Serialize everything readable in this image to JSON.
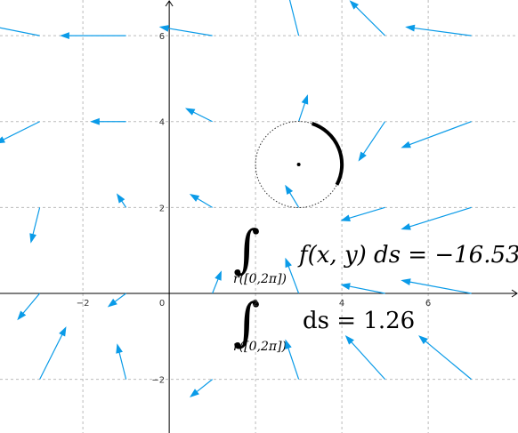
{
  "chart_data": {
    "type": "vector_field",
    "xlim": [
      -3.92,
      8.08
    ],
    "ylim": [
      -3.25,
      6.83
    ],
    "xticks": [
      {
        "value": -2,
        "label": "−2"
      },
      0,
      2,
      4,
      6
    ],
    "yticks": [
      {
        "value": -2,
        "label": "−2"
      },
      2,
      4,
      6
    ],
    "grid": true,
    "color": "#0a9be8",
    "vectors": [
      [
        -3,
        6,
        -1.5,
        0.3
      ],
      [
        -1,
        6,
        -1.5,
        0
      ],
      [
        1,
        6,
        -1.2,
        0.2
      ],
      [
        3,
        6,
        -0.3,
        1.2
      ],
      [
        5,
        6,
        -0.8,
        0.8
      ],
      [
        7,
        6,
        -1.5,
        0.2
      ],
      [
        -3,
        4,
        -1,
        -0.5
      ],
      [
        -1,
        4,
        -0.8,
        0
      ],
      [
        1,
        4,
        -0.6,
        0.3
      ],
      [
        3,
        4,
        0.2,
        0.6
      ],
      [
        5,
        4,
        -0.6,
        -0.9
      ],
      [
        7,
        4,
        -1.6,
        -0.6
      ],
      [
        -3,
        2,
        -0.2,
        -0.8
      ],
      [
        -1,
        2,
        -0.2,
        0.3
      ],
      [
        1,
        2,
        -0.5,
        0.3
      ],
      [
        3,
        2,
        -0.3,
        0.5
      ],
      [
        5,
        2,
        -1,
        -0.3
      ],
      [
        7,
        2,
        -1.6,
        -0.5
      ],
      [
        -3,
        0,
        -0.5,
        -0.6
      ],
      [
        -1,
        0,
        -0.4,
        -0.3
      ],
      [
        1,
        0,
        0.2,
        0.5
      ],
      [
        3,
        0,
        -0.3,
        0.8
      ],
      [
        5,
        0,
        -1,
        0.2
      ],
      [
        7,
        0,
        -1.6,
        0.3
      ],
      [
        -3,
        -2,
        0.6,
        1.2
      ],
      [
        -1,
        -2,
        -0.2,
        0.8
      ],
      [
        1,
        -2,
        -0.5,
        -0.4
      ],
      [
        3,
        -2,
        -0.3,
        0.9
      ],
      [
        5,
        -2,
        -0.9,
        1
      ],
      [
        7,
        -2,
        -1.2,
        1
      ]
    ],
    "circle": {
      "center": [
        3,
        3
      ],
      "radius": 1,
      "arc_degrees": [
        -28,
        72
      ]
    },
    "integrals": [
      {
        "integrand": "f(x, y) ds = −16.53",
        "subscript": "r([0,2π])"
      },
      {
        "integrand": "ds = 1.26",
        "subscript": "r([0,2π])"
      }
    ]
  }
}
